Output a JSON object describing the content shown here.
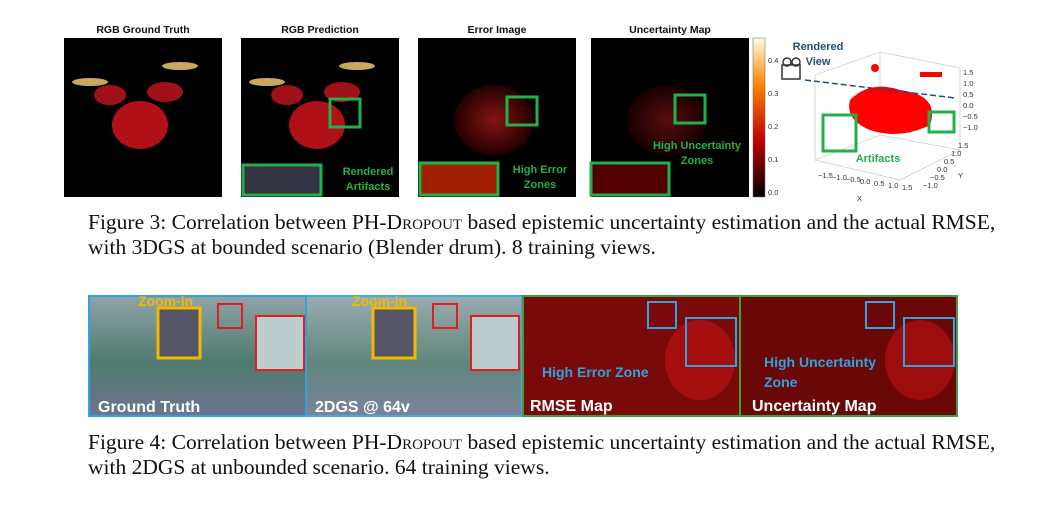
{
  "figure3": {
    "panels": [
      "RGB Ground Truth",
      "RGB Prediction",
      "Error Image",
      "Uncertainty Map"
    ],
    "colorbar_ticks": [
      "0.4",
      "0.3",
      "0.2",
      "0.1",
      "0.0"
    ],
    "annotations": {
      "rendered_artifacts": [
        "Rendered",
        "Artifacts"
      ],
      "high_error": [
        "High Error",
        "Zones"
      ],
      "high_uncertainty": [
        "High Uncertainty",
        "Zones"
      ],
      "rendered_view": [
        "Rendered",
        "View"
      ],
      "artifacts": "Artifacts"
    },
    "plot3d": {
      "z_ticks": [
        "1.5",
        "1.0",
        "0.5",
        "0.0",
        "−0.5",
        "−1.0"
      ],
      "x_ticks": [
        "−1.5",
        "−1.0",
        "−0.5",
        "0.0",
        "0.5",
        "1.0",
        "1.5"
      ],
      "y_ticks": [
        "1.5",
        "1.0",
        "0.5",
        "0.0",
        "−0.5",
        "−1.0"
      ],
      "x_label": "X",
      "y_label": "Y"
    },
    "caption": {
      "prefix": "Figure 3: Correlation between PH-",
      "smallcaps": "Dropout",
      "suffix": " based epistemic uncertainty estimation and the actual RMSE, with 3DGS at bounded scenario (Blender drum). 8 training views."
    }
  },
  "figure4": {
    "panels": [
      "Ground Truth",
      "2DGS @ 64v",
      "RMSE Map",
      "Uncertainty Map"
    ],
    "zoom": "Zoom-in",
    "high_error": "High Error Zone",
    "high_uncertainty": [
      "High Uncertainty",
      "Zone"
    ],
    "caption": {
      "prefix": "Figure 4: Correlation between PH-",
      "smallcaps": "Dropout",
      "suffix": " based epistemic uncertainty estimation and the actual RMSE, with 2DGS at unbounded scenario. 64 training views."
    }
  }
}
